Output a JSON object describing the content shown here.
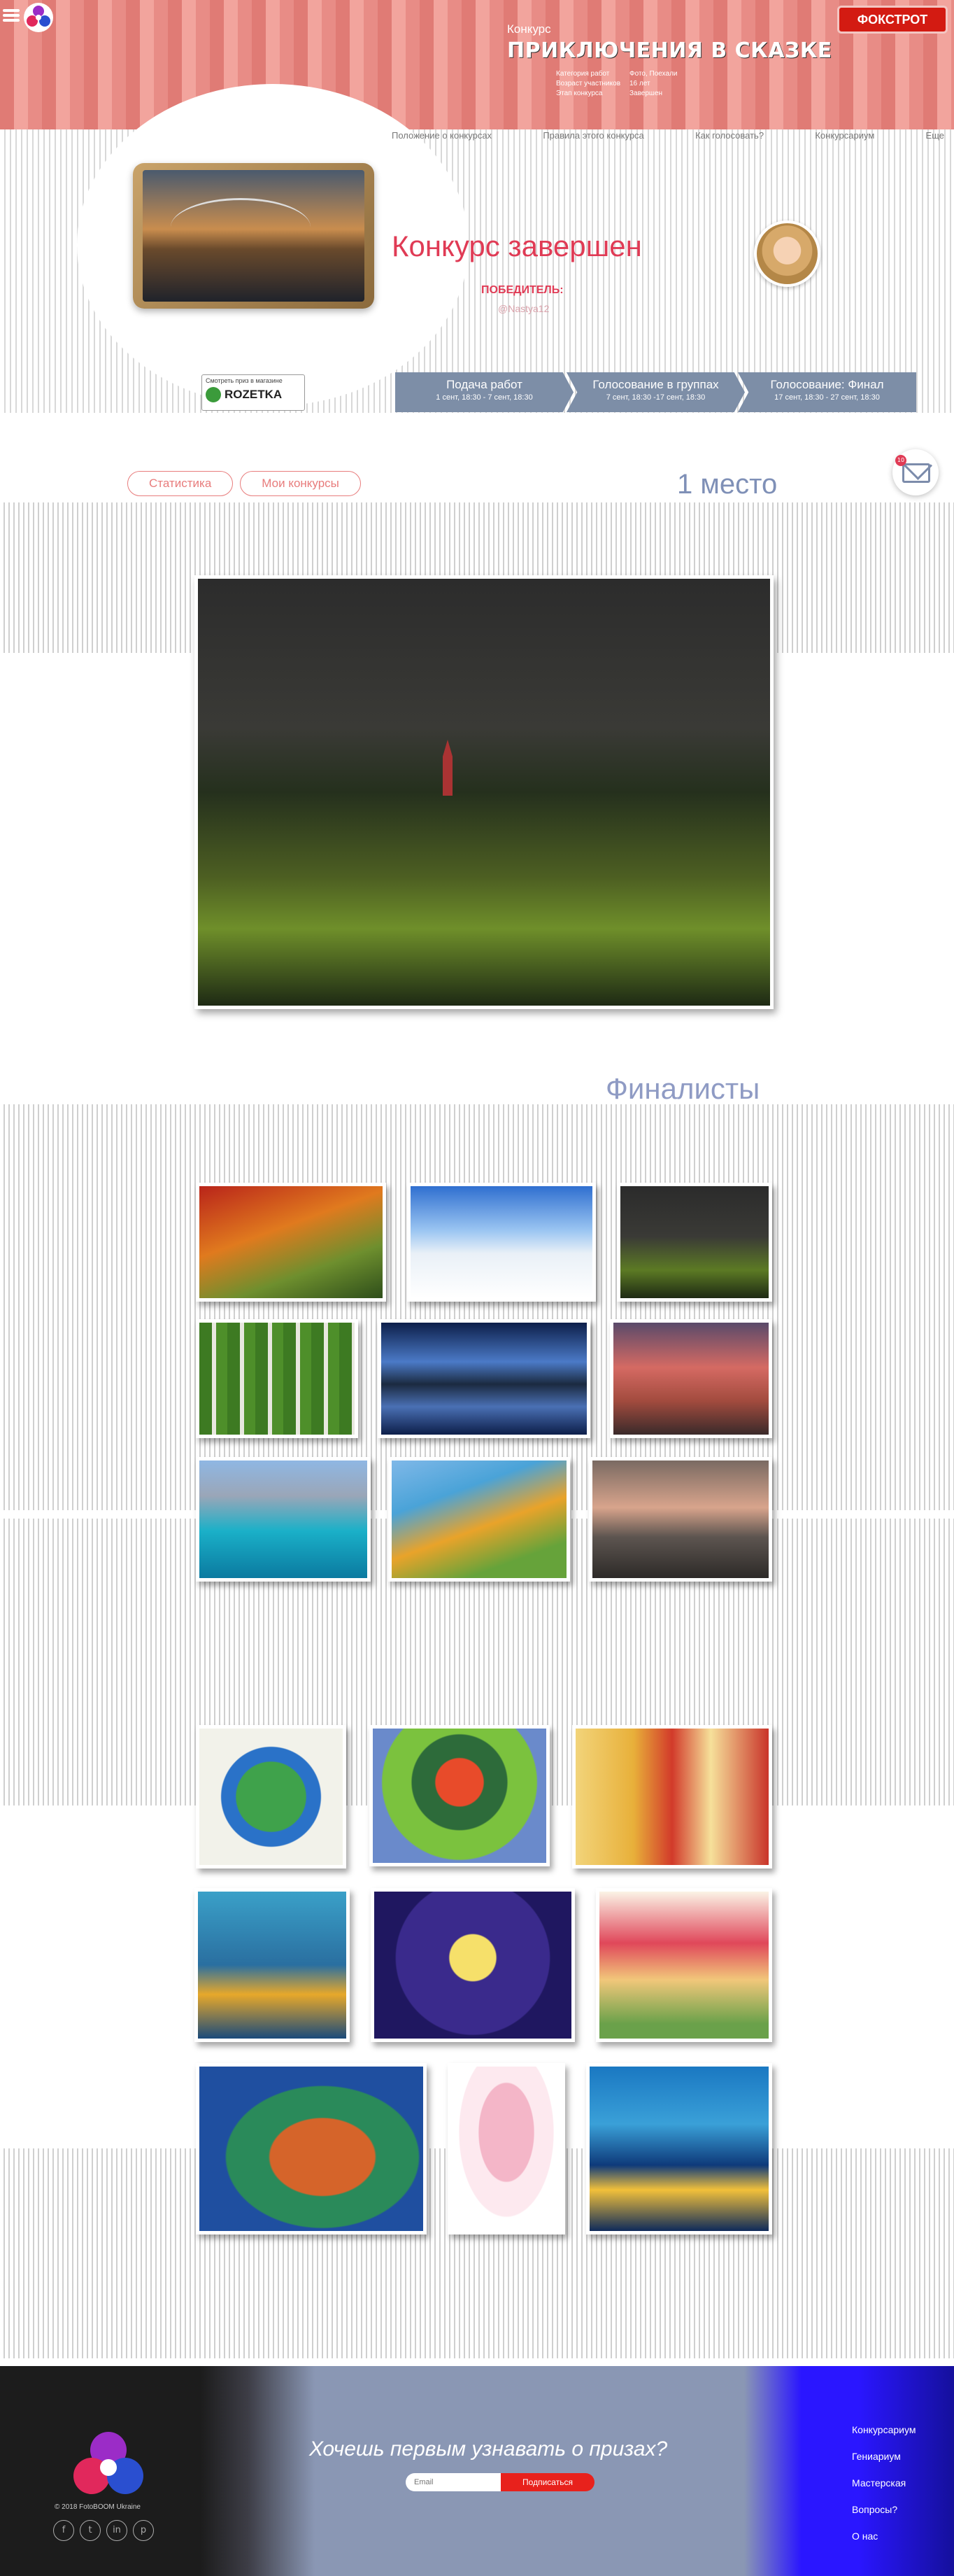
{
  "header": {
    "contest_label": "Конкурс",
    "contest_title": "ПРИКЛЮЧЕНИЯ В СКАЗКЕ",
    "meta": [
      {
        "key": "Категория работ",
        "value": "Фото, Поехали"
      },
      {
        "key": "Возраст участников",
        "value": "16 лет"
      },
      {
        "key": "Этап конкурса",
        "value": "Завершен"
      }
    ],
    "foxtrot": "ФОКСТРОТ"
  },
  "nav": [
    "Положение о конкурсах",
    "Правила этого конкурса",
    "Как голосовать?",
    "Конкурсариум",
    "Еще"
  ],
  "hero": {
    "status": "Конкурс завершен",
    "winner_label": "ПОБЕДИТЕЛЬ:",
    "winner_name": "@Nastya12",
    "rozetka_caption": "Смотреть приз в магазине",
    "rozetka_name": "ROZETKA"
  },
  "stages": [
    {
      "title": "Подача работ",
      "dates": "1 сент, 18:30 - 7 сент, 18:30"
    },
    {
      "title": "Голосование в группах",
      "dates": "7 сент, 18:30 -17 сент, 18:30"
    },
    {
      "title": "Голосование: Финал",
      "dates": "17 сент, 18:30 - 27 сент, 18:30"
    }
  ],
  "tabs": [
    "Статистика",
    "Мои конкурсы"
  ],
  "place_label": "1 место",
  "mail_badge": "10",
  "finalists_title": "Финалисты",
  "photo_finalists": [
    {
      "name": "autumn-park"
    },
    {
      "name": "winter-forest"
    },
    {
      "name": "church-valley"
    },
    {
      "name": "birch-grove"
    },
    {
      "name": "lake-reflection"
    },
    {
      "name": "sunset-town"
    },
    {
      "name": "mountain-lake"
    },
    {
      "name": "green-lagoon"
    },
    {
      "name": "foggy-boat"
    }
  ],
  "drawing_finalists": [
    {
      "name": "earth-drawing"
    },
    {
      "name": "tree-drawing"
    },
    {
      "name": "folk-couple-drawing"
    },
    {
      "name": "diver-drawing"
    },
    {
      "name": "angel-sky-drawing"
    },
    {
      "name": "house-drawing"
    },
    {
      "name": "fish-drawing"
    },
    {
      "name": "pink-angel-drawing"
    },
    {
      "name": "palm-sea-drawing"
    }
  ],
  "footer": {
    "copyright": "© 2018 FotoBOOM Ukraine",
    "subscribe_title": "Хочешь первым узнавать о призах?",
    "email_placeholder": "Email",
    "subscribe_button": "Подписаться",
    "links": [
      "Конкурсариум",
      "Гениариум",
      "Мастерская",
      "Вопросы?",
      "О нас"
    ],
    "socials": [
      "f",
      "t",
      "in",
      "p"
    ]
  }
}
